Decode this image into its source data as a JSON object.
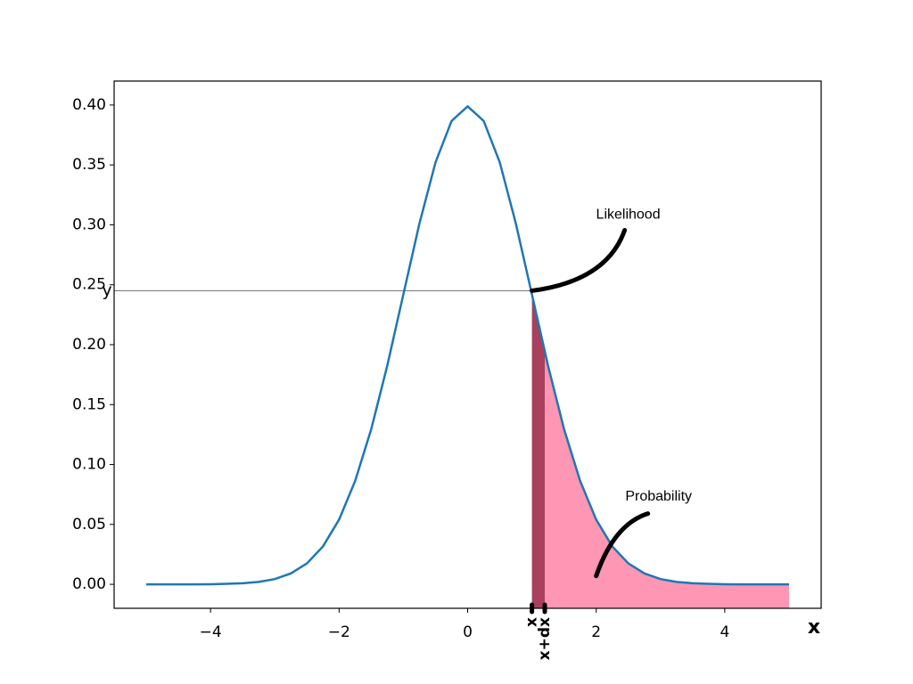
{
  "chart_data": {
    "type": "line",
    "x": [
      -5,
      -4.75,
      -4.5,
      -4.25,
      -4,
      -3.75,
      -3.5,
      -3.25,
      -3,
      -2.75,
      -2.5,
      -2.25,
      -2,
      -1.75,
      -1.5,
      -1.25,
      -1,
      -0.75,
      -0.5,
      -0.25,
      0,
      0.25,
      0.5,
      0.75,
      1,
      1.25,
      1.5,
      1.75,
      2,
      2.25,
      2.5,
      2.75,
      3,
      3.25,
      3.5,
      3.75,
      4,
      4.25,
      4.5,
      4.75,
      5
    ],
    "series": [
      {
        "color": "#1f77b4",
        "values": [
          0.0,
          0.0,
          0.0,
          0.0,
          0.0001,
          0.0004,
          0.0009,
          0.002,
          0.0044,
          0.0091,
          0.0175,
          0.0317,
          0.054,
          0.0863,
          0.1295,
          0.1826,
          0.242,
          0.3011,
          0.3521,
          0.3867,
          0.3989,
          0.3867,
          0.3521,
          0.3011,
          0.242,
          0.1826,
          0.1295,
          0.0863,
          0.054,
          0.0317,
          0.0175,
          0.0091,
          0.0044,
          0.002,
          0.0009,
          0.0004,
          0.0001,
          0.0,
          0.0,
          0.0,
          0.0
        ]
      }
    ],
    "xlim": [
      -5.5,
      5.5
    ],
    "ylim": [
      -0.02,
      0.42
    ],
    "xticks": [
      {
        "value": -4,
        "label": "−4"
      },
      {
        "value": -2,
        "label": "−2"
      },
      0,
      2,
      4
    ],
    "yticks": [
      {
        "value": 0,
        "label": "0.00"
      },
      0.05,
      {
        "value": 0.1,
        "label": "0.10"
      },
      0.15,
      {
        "value": 0.2,
        "label": "0.20"
      },
      0.25,
      {
        "value": 0.3,
        "label": "0.30"
      },
      0.35,
      {
        "value": 0.4,
        "label": "0.40"
      }
    ],
    "x_label": "x",
    "y_label": "y",
    "likelihood": {
      "x": 1,
      "y": 0.245
    },
    "fills": [
      {
        "x": [
          1,
          1.2
        ],
        "color": "#a8405e"
      },
      {
        "x": [
          1.2,
          5
        ],
        "color": "#ff96b4"
      }
    ],
    "markers": [
      {
        "label": "x",
        "x": 1
      },
      {
        "label": "x+dx",
        "x": 1.2
      }
    ],
    "annotations": [
      {
        "text": "Likelihood",
        "x": 1,
        "y": 0.245
      },
      {
        "text": "Probability",
        "x": 2,
        "y": 0.007
      }
    ]
  }
}
